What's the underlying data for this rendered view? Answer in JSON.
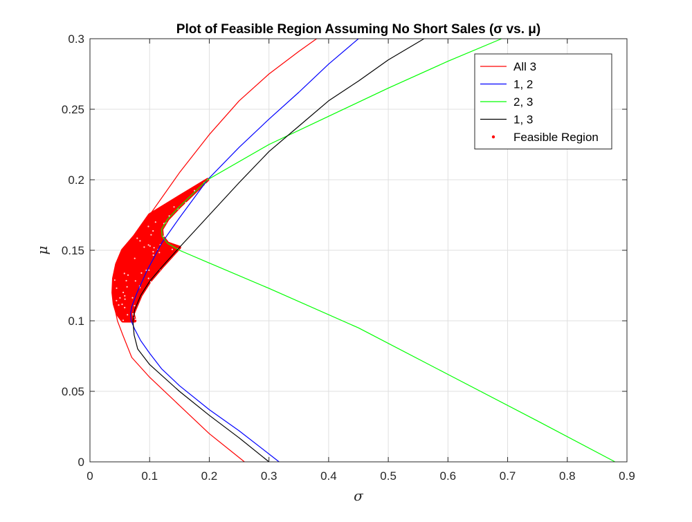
{
  "chart_data": {
    "type": "line",
    "title": "Plot of Feasible Region Assuming No Short Sales (σ vs. μ)",
    "xlabel": "σ",
    "ylabel": "μ",
    "xlim": [
      0,
      0.9
    ],
    "ylim": [
      0,
      0.3
    ],
    "xticks": [
      "0",
      "0.1",
      "0.2",
      "0.3",
      "0.4",
      "0.5",
      "0.6",
      "0.7",
      "0.8",
      "0.9"
    ],
    "yticks": [
      "0",
      "0.05",
      "0.1",
      "0.15",
      "0.2",
      "0.25",
      "0.3"
    ],
    "grid": true,
    "legend_position": "top-right",
    "series": [
      {
        "name": "All 3",
        "color": "#ff0000",
        "marker": "line",
        "points": [
          [
            0.259,
            0.0
          ],
          [
            0.2,
            0.02
          ],
          [
            0.15,
            0.04
          ],
          [
            0.1,
            0.06
          ],
          [
            0.07,
            0.074
          ],
          [
            0.055,
            0.09
          ],
          [
            0.046,
            0.1
          ],
          [
            0.041,
            0.11
          ],
          [
            0.039,
            0.12
          ],
          [
            0.04,
            0.13
          ],
          [
            0.045,
            0.14
          ],
          [
            0.055,
            0.15
          ],
          [
            0.075,
            0.16
          ],
          [
            0.1,
            0.175
          ],
          [
            0.15,
            0.205
          ],
          [
            0.2,
            0.232
          ],
          [
            0.25,
            0.256
          ],
          [
            0.3,
            0.275
          ],
          [
            0.35,
            0.291
          ],
          [
            0.38,
            0.3
          ]
        ]
      },
      {
        "name": "1, 2",
        "color": "#0000ff",
        "marker": "line",
        "points": [
          [
            0.317,
            0.0
          ],
          [
            0.25,
            0.022
          ],
          [
            0.2,
            0.037
          ],
          [
            0.15,
            0.054
          ],
          [
            0.12,
            0.066
          ],
          [
            0.1,
            0.077
          ],
          [
            0.085,
            0.086
          ],
          [
            0.075,
            0.094
          ],
          [
            0.069,
            0.1
          ],
          [
            0.068,
            0.105
          ],
          [
            0.07,
            0.11
          ],
          [
            0.079,
            0.12
          ],
          [
            0.095,
            0.135
          ],
          [
            0.12,
            0.155
          ],
          [
            0.15,
            0.173
          ],
          [
            0.197,
            0.2
          ],
          [
            0.25,
            0.223
          ],
          [
            0.3,
            0.243
          ],
          [
            0.35,
            0.262
          ],
          [
            0.4,
            0.282
          ],
          [
            0.45,
            0.3
          ]
        ]
      },
      {
        "name": "2, 3",
        "color": "#00ff00",
        "marker": "line",
        "points": [
          [
            0.88,
            0.0
          ],
          [
            0.75,
            0.029
          ],
          [
            0.6,
            0.062
          ],
          [
            0.45,
            0.095
          ],
          [
            0.3,
            0.123
          ],
          [
            0.2,
            0.141
          ],
          [
            0.15,
            0.15
          ],
          [
            0.13,
            0.155
          ],
          [
            0.121,
            0.16
          ],
          [
            0.12,
            0.165
          ],
          [
            0.13,
            0.172
          ],
          [
            0.15,
            0.181
          ],
          [
            0.197,
            0.2
          ],
          [
            0.3,
            0.225
          ],
          [
            0.4,
            0.245
          ],
          [
            0.5,
            0.265
          ],
          [
            0.6,
            0.284
          ],
          [
            0.69,
            0.3
          ]
        ]
      },
      {
        "name": "1, 3",
        "color": "#000000",
        "marker": "line",
        "points": [
          [
            0.3,
            0.0
          ],
          [
            0.25,
            0.017
          ],
          [
            0.2,
            0.033
          ],
          [
            0.15,
            0.05
          ],
          [
            0.1,
            0.069
          ],
          [
            0.08,
            0.08
          ],
          [
            0.074,
            0.09
          ],
          [
            0.072,
            0.1
          ],
          [
            0.075,
            0.108
          ],
          [
            0.085,
            0.118
          ],
          [
            0.1,
            0.128
          ],
          [
            0.12,
            0.138
          ],
          [
            0.15,
            0.152
          ],
          [
            0.2,
            0.175
          ],
          [
            0.25,
            0.198
          ],
          [
            0.3,
            0.22
          ],
          [
            0.35,
            0.238
          ],
          [
            0.4,
            0.256
          ],
          [
            0.45,
            0.27
          ],
          [
            0.5,
            0.285
          ],
          [
            0.56,
            0.3
          ]
        ]
      },
      {
        "name": "Feasible Region",
        "color": "#ff0000",
        "marker": "dot",
        "region": {
          "lower_boundary": [
            [
              0.075,
              0.1
            ],
            [
              0.072,
              0.105
            ],
            [
              0.075,
              0.108
            ],
            [
              0.085,
              0.118
            ],
            [
              0.1,
              0.128
            ],
            [
              0.12,
              0.138
            ],
            [
              0.15,
              0.152
            ],
            [
              0.13,
              0.155
            ],
            [
              0.121,
              0.16
            ],
            [
              0.12,
              0.165
            ],
            [
              0.13,
              0.172
            ],
            [
              0.15,
              0.181
            ],
            [
              0.197,
              0.2
            ]
          ],
          "upper_boundary": [
            [
              0.075,
              0.1
            ],
            [
              0.055,
              0.1
            ],
            [
              0.046,
              0.105
            ],
            [
              0.041,
              0.112
            ],
            [
              0.039,
              0.12
            ],
            [
              0.04,
              0.13
            ],
            [
              0.045,
              0.14
            ],
            [
              0.055,
              0.15
            ],
            [
              0.075,
              0.16
            ],
            [
              0.1,
              0.175
            ],
            [
              0.15,
              0.188
            ],
            [
              0.197,
              0.2
            ]
          ]
        }
      }
    ]
  }
}
